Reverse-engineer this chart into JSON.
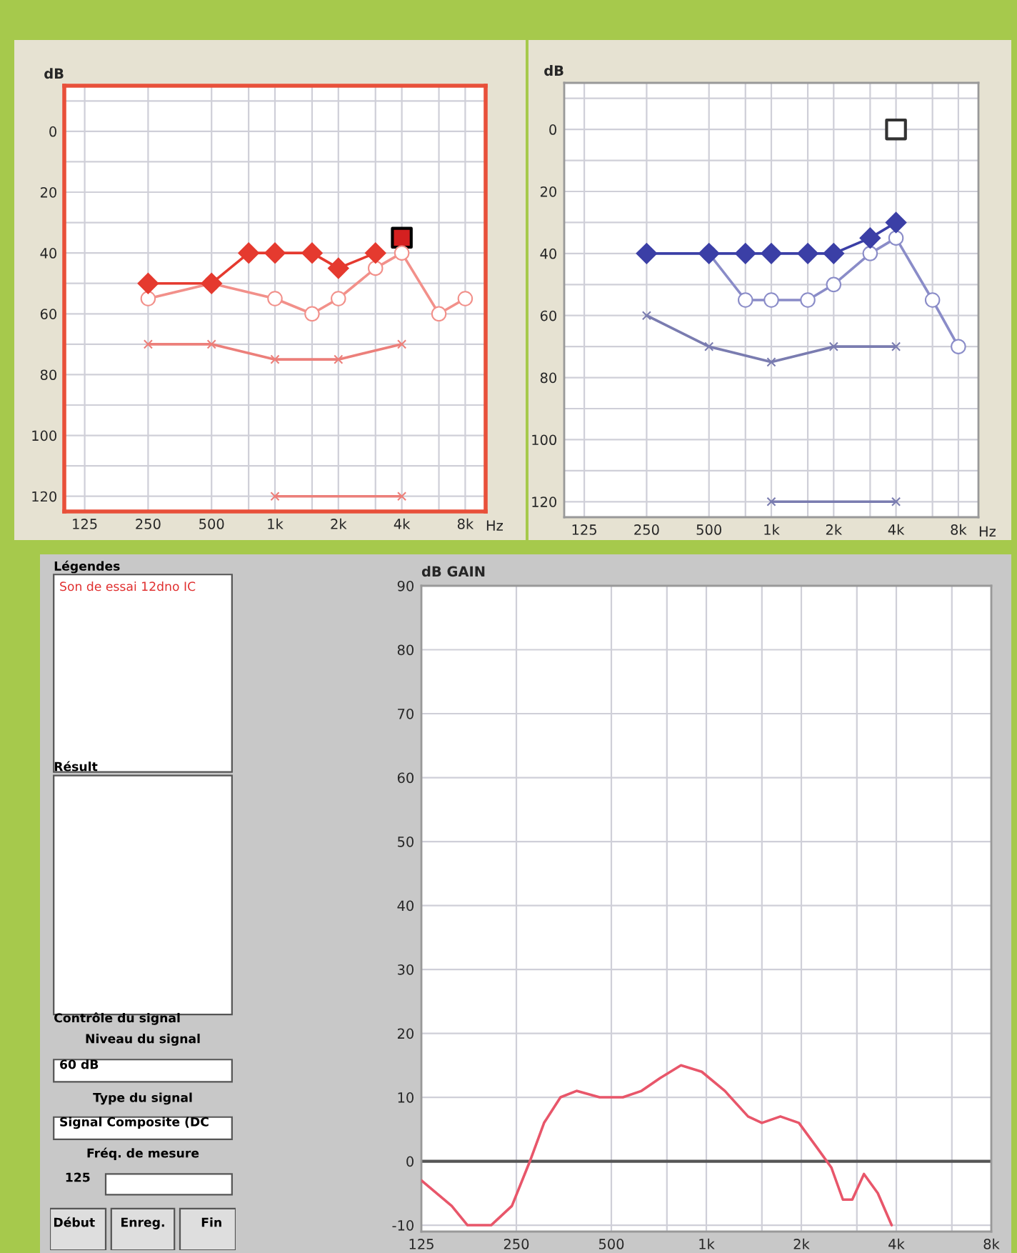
{
  "chart_data": [
    {
      "type": "line",
      "ylabel": "dB",
      "xlabel": "Hz",
      "log": "x",
      "grid": true,
      "legend": false,
      "xlim": [
        100,
        10000
      ],
      "ylim": [
        125,
        -15
      ],
      "xticks": [
        125,
        250,
        500,
        {
          "value": 750,
          "label": null
        },
        {
          "value": 1000,
          "label": "1k"
        },
        {
          "value": 1500,
          "label": null
        },
        {
          "value": 2000,
          "label": "2k"
        },
        {
          "value": 3000,
          "label": null
        },
        {
          "value": 4000,
          "label": "4k"
        },
        {
          "value": 6000,
          "label": null
        },
        {
          "value": 8000,
          "label": "8k"
        }
      ],
      "yticks": [
        {
          "value": -10,
          "label": null
        },
        0,
        {
          "value": 10,
          "label": null
        },
        20,
        {
          "value": 30,
          "label": null
        },
        40,
        {
          "value": 50,
          "label": null
        },
        60,
        {
          "value": 70,
          "label": null
        },
        80,
        {
          "value": 90,
          "label": null
        },
        100,
        {
          "value": 110,
          "label": null
        },
        120
      ],
      "series": [
        {
          "color": "#e53a2f",
          "marker": "diamond",
          "x": [
            250,
            500,
            750,
            1000,
            1500,
            2000,
            3000
          ],
          "values": [
            50,
            50,
            40,
            40,
            40,
            45,
            40
          ]
        },
        {
          "color": "#f2908a",
          "marker": "circle",
          "x": [
            250,
            500,
            1000,
            1500,
            2000,
            3000,
            4000,
            6000,
            8000
          ],
          "values": [
            55,
            50,
            55,
            60,
            55,
            45,
            40,
            60,
            55
          ]
        },
        {
          "color": "#ec7f7a",
          "marker": "cross",
          "x": [
            250,
            500,
            1000,
            2000,
            4000
          ],
          "values": [
            70,
            70,
            75,
            75,
            70
          ]
        },
        {
          "color": "#ec7f7a",
          "marker": "cross",
          "x": [
            1000,
            4000
          ],
          "values": [
            120,
            120
          ]
        },
        {
          "type": "scatter",
          "color": "#d42020",
          "marker": "square",
          "x": [
            4000
          ],
          "values": [
            35
          ]
        }
      ]
    },
    {
      "type": "line",
      "ylabel": "dB",
      "xlabel": "Hz",
      "log": "x",
      "grid": true,
      "legend": false,
      "xlim": [
        100,
        10000
      ],
      "ylim": [
        125,
        -15
      ],
      "xticks": [
        125,
        250,
        500,
        {
          "value": 750,
          "label": null
        },
        {
          "value": 1000,
          "label": "1k"
        },
        {
          "value": 1500,
          "label": null
        },
        {
          "value": 2000,
          "label": "2k"
        },
        {
          "value": 3000,
          "label": null
        },
        {
          "value": 4000,
          "label": "4k"
        },
        {
          "value": 6000,
          "label": null
        },
        {
          "value": 8000,
          "label": "8k"
        }
      ],
      "yticks": [
        {
          "value": -10,
          "label": null
        },
        0,
        {
          "value": 10,
          "label": null
        },
        20,
        {
          "value": 30,
          "label": null
        },
        40,
        {
          "value": 50,
          "label": null
        },
        60,
        {
          "value": 70,
          "label": null
        },
        80,
        {
          "value": 90,
          "label": null
        },
        100,
        {
          "value": 110,
          "label": null
        },
        120
      ],
      "series": [
        {
          "color": "#3b3fa6",
          "marker": "diamond",
          "x": [
            250,
            500,
            750,
            1000,
            1500,
            2000,
            3000,
            4000
          ],
          "values": [
            40,
            40,
            40,
            40,
            40,
            40,
            35,
            30
          ]
        },
        {
          "color": "#8a8cc8",
          "marker": "circle",
          "x": [
            500,
            750,
            1000,
            1500,
            2000,
            3000,
            4000,
            6000,
            8000
          ],
          "values": [
            40,
            55,
            55,
            55,
            50,
            40,
            35,
            55,
            70
          ]
        },
        {
          "color": "#7a7cb0",
          "marker": "cross",
          "x": [
            250,
            500,
            1000,
            2000,
            4000
          ],
          "values": [
            60,
            70,
            75,
            70,
            70
          ]
        },
        {
          "color": "#7a7cb0",
          "marker": "cross",
          "x": [
            1000,
            4000
          ],
          "values": [
            120,
            120
          ]
        },
        {
          "type": "scatter",
          "color": "#333333",
          "marker": "square",
          "x": [
            4000
          ],
          "values": [
            0
          ]
        }
      ]
    },
    {
      "type": "other",
      "annotations": [
        "Légendes",
        "Son de essai 12dno IC",
        "Résult",
        "Contrôle du signal",
        "Niveau du signal",
        "60 dB",
        "Type du signal",
        "Signal Composite (DC",
        "Fréq. de mesure",
        "125",
        "Début",
        "Enreg.",
        "Fin"
      ]
    },
    {
      "type": "line",
      "ylabel": "dB GAIN",
      "log": "x",
      "grid": true,
      "legend": false,
      "xlim": [
        125,
        8000
      ],
      "ylim": [
        -11,
        90
      ],
      "xticks": [
        125,
        250,
        500,
        {
          "value": 750,
          "label": null
        },
        {
          "value": 1000,
          "label": "1k"
        },
        {
          "value": 1500,
          "label": null
        },
        {
          "value": 2000,
          "label": "2k"
        },
        {
          "value": 3000,
          "label": null
        },
        {
          "value": 4000,
          "label": "4k"
        },
        {
          "value": 6000,
          "label": null
        },
        {
          "value": 8000,
          "label": "8k"
        }
      ],
      "yticks": [
        -10,
        0,
        10,
        20,
        30,
        40,
        50,
        60,
        70,
        80,
        90
      ],
      "ref_lines": [
        {
          "axis": "y",
          "value": 0,
          "color": "#555555"
        }
      ],
      "series": [
        {
          "color": "#e8566a",
          "x": [
            125,
            156,
            175,
            208,
            242,
            276,
            306,
            345,
            388,
            459,
            544,
            623,
            713,
            831,
            967,
            1145,
            1356,
            1500,
            1717,
            1965,
            2252,
            2491,
            2709,
            2901,
            3159,
            3495,
            3866
          ],
          "values": [
            -3,
            -7,
            -10,
            -10,
            -7,
            0,
            6,
            10,
            11,
            10,
            10,
            11,
            13,
            15,
            14,
            11,
            7,
            6,
            7,
            6,
            2,
            -1,
            -6,
            -6,
            -2,
            -5,
            -10
          ]
        }
      ]
    }
  ]
}
